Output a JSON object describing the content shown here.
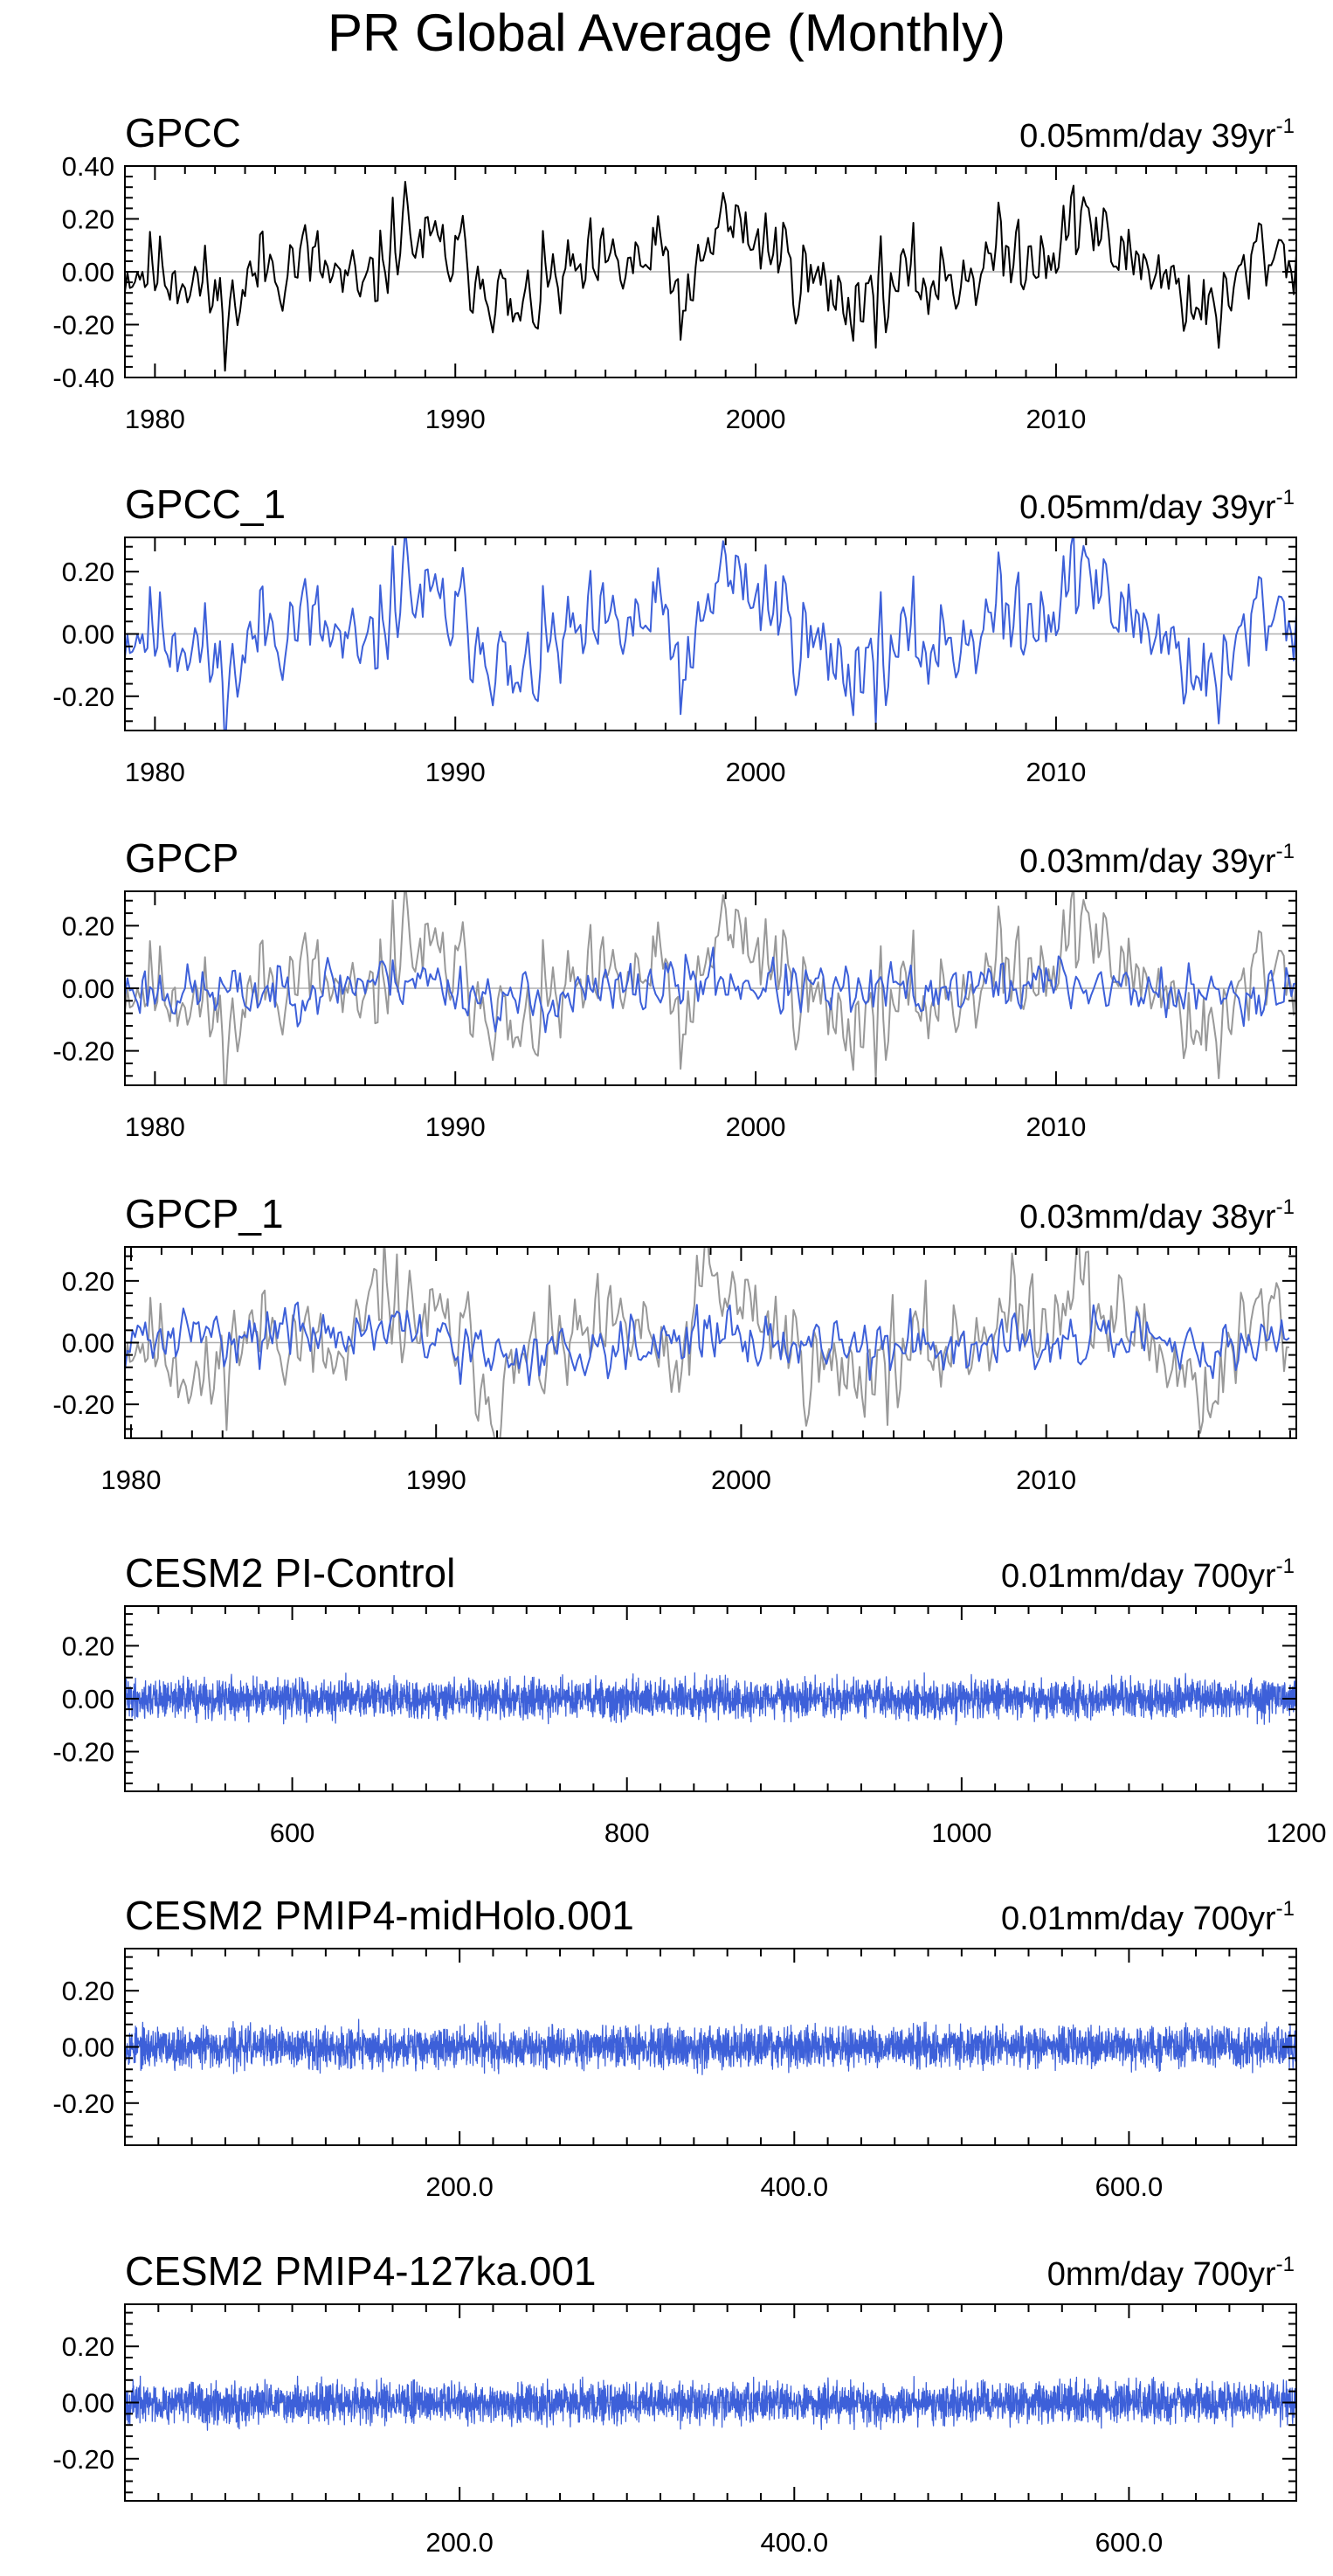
{
  "figure_title": "PR Global Average (Monthly)",
  "colors": {
    "obs": "#000000",
    "obs_faded": "#999999",
    "model": "#3d60d9",
    "axis": "#000000",
    "zero_line": "#b0b0b0"
  },
  "chart_data": [
    {
      "type": "line",
      "title": "GPCC",
      "trend_text": "0.05mm/day 39yr",
      "trend_exp": "-1",
      "xlim": [
        1979,
        2018
      ],
      "ylim": [
        -0.4,
        0.4
      ],
      "xticks": [
        1980,
        1990,
        2000,
        2010
      ],
      "xtick_labels": [
        "1980",
        "1990",
        "2000",
        "2010"
      ],
      "yticks": [
        -0.4,
        -0.2,
        0.0,
        0.2,
        0.4
      ],
      "ytick_labels": [
        "-0.40",
        "-0.20",
        "0.00",
        "0.20",
        "0.40"
      ],
      "series": [
        {
          "style": "obs",
          "sampling": "monthly",
          "seed": 11,
          "x": [
            1979.0,
            1981.0,
            1982.5,
            1983.5,
            1985.0,
            1987.0,
            1988.3,
            1988.8,
            1990.0,
            1991.0,
            1992.0,
            1993.0,
            1995.0,
            1997.0,
            1997.7,
            1998.8,
            1999.5,
            2000.5,
            2002.0,
            2003.0,
            2005.0,
            2006.5,
            2008.0,
            2009.5,
            2010.2,
            2011.0,
            2011.6,
            2013.0,
            2014.5,
            2015.5,
            2016.0,
            2017.0,
            2018.0
          ],
          "y": [
            0.02,
            0.0,
            -0.15,
            0.02,
            0.05,
            -0.1,
            0.2,
            0.1,
            0.05,
            0.0,
            -0.2,
            -0.05,
            0.0,
            0.05,
            -0.18,
            0.22,
            0.15,
            0.1,
            -0.05,
            -0.1,
            -0.05,
            -0.02,
            0.05,
            0.1,
            0.1,
            0.25,
            0.08,
            0.05,
            -0.1,
            -0.18,
            -0.05,
            0.1,
            0.05
          ],
          "noise": 0.075
        }
      ]
    },
    {
      "type": "line",
      "title": "GPCC_1",
      "trend_text": "0.05mm/day 39yr",
      "trend_exp": "-1",
      "xlim": [
        1979,
        2018
      ],
      "ylim": [
        -0.31,
        0.31
      ],
      "xticks": [
        1980,
        1990,
        2000,
        2010
      ],
      "xtick_labels": [
        "1980",
        "1990",
        "2000",
        "2010"
      ],
      "yticks": [
        -0.2,
        0.0,
        0.2
      ],
      "ytick_labels": [
        "-0.20",
        "0.00",
        "0.20"
      ],
      "series": [
        {
          "style": "model",
          "sampling": "monthly",
          "seed": 11,
          "x": [
            1979.0,
            1981.0,
            1982.5,
            1983.5,
            1985.0,
            1987.0,
            1988.3,
            1988.8,
            1990.0,
            1991.0,
            1992.0,
            1993.0,
            1995.0,
            1997.0,
            1997.7,
            1998.8,
            1999.5,
            2000.5,
            2002.0,
            2003.0,
            2005.0,
            2006.5,
            2008.0,
            2009.5,
            2010.2,
            2011.0,
            2011.6,
            2013.0,
            2014.5,
            2015.5,
            2016.0,
            2017.0,
            2018.0
          ],
          "y": [
            0.02,
            0.0,
            -0.15,
            0.02,
            0.05,
            -0.1,
            0.2,
            0.1,
            0.05,
            0.0,
            -0.2,
            -0.05,
            0.0,
            0.05,
            -0.18,
            0.22,
            0.15,
            0.1,
            -0.05,
            -0.1,
            -0.05,
            -0.02,
            0.05,
            0.1,
            0.1,
            0.25,
            0.08,
            0.05,
            -0.1,
            -0.18,
            -0.05,
            0.1,
            0.05
          ],
          "noise": 0.075
        }
      ]
    },
    {
      "type": "line",
      "title": "GPCP",
      "trend_text": "0.03mm/day 39yr",
      "trend_exp": "-1",
      "xlim": [
        1979,
        2018
      ],
      "ylim": [
        -0.31,
        0.31
      ],
      "xticks": [
        1980,
        1990,
        2000,
        2010
      ],
      "xtick_labels": [
        "1980",
        "1990",
        "2000",
        "2010"
      ],
      "yticks": [
        -0.2,
        0.0,
        0.2
      ],
      "ytick_labels": [
        "-0.20",
        "0.00",
        "0.20"
      ],
      "series": [
        {
          "style": "obs_faded",
          "sampling": "monthly",
          "seed": 11,
          "x": [
            1979.0,
            1981.0,
            1982.5,
            1983.5,
            1985.0,
            1987.0,
            1988.3,
            1988.8,
            1990.0,
            1991.0,
            1992.0,
            1993.0,
            1995.0,
            1997.0,
            1997.7,
            1998.8,
            1999.5,
            2000.5,
            2002.0,
            2003.0,
            2005.0,
            2006.5,
            2008.0,
            2009.5,
            2010.2,
            2011.0,
            2011.6,
            2013.0,
            2014.5,
            2015.5,
            2016.0,
            2017.0,
            2018.0
          ],
          "y": [
            0.02,
            0.0,
            -0.15,
            0.02,
            0.05,
            -0.1,
            0.2,
            0.1,
            0.05,
            0.0,
            -0.2,
            -0.05,
            0.0,
            0.05,
            -0.18,
            0.22,
            0.15,
            0.1,
            -0.05,
            -0.1,
            -0.05,
            -0.02,
            0.05,
            0.1,
            0.1,
            0.25,
            0.08,
            0.05,
            -0.1,
            -0.18,
            -0.05,
            0.1,
            0.05
          ],
          "noise": 0.075
        },
        {
          "style": "model",
          "sampling": "monthly",
          "seed": 23,
          "x": [
            1979.0,
            1983.0,
            1988.5,
            1992.0,
            1998.5,
            2003.0,
            2010.0,
            2015.5,
            2018.0
          ],
          "y": [
            0.0,
            -0.02,
            0.04,
            -0.05,
            0.03,
            -0.02,
            0.02,
            -0.03,
            0.02
          ],
          "noise": 0.04
        }
      ]
    },
    {
      "type": "line",
      "title": "GPCP_1",
      "trend_text": "0.03mm/day 38yr",
      "trend_exp": "-1",
      "xlim": [
        1979.8,
        2018.2
      ],
      "ylim": [
        -0.31,
        0.31
      ],
      "xticks": [
        1980,
        1990,
        2000,
        2010
      ],
      "xtick_labels": [
        "1980",
        "1990",
        "2000",
        "2010"
      ],
      "yticks": [
        -0.2,
        0.0,
        0.2
      ],
      "ytick_labels": [
        "-0.20",
        "0.00",
        "0.20"
      ],
      "series": [
        {
          "style": "obs_faded",
          "sampling": "monthly",
          "seed": 11,
          "x": [
            1979.8,
            1981.0,
            1982.5,
            1983.5,
            1985.0,
            1987.0,
            1988.3,
            1988.8,
            1990.0,
            1991.0,
            1992.0,
            1993.0,
            1995.0,
            1997.0,
            1997.7,
            1998.8,
            1999.5,
            2000.5,
            2002.0,
            2003.0,
            2005.0,
            2006.5,
            2008.0,
            2009.5,
            2010.2,
            2011.0,
            2011.6,
            2013.0,
            2014.5,
            2015.5,
            2016.0,
            2017.0,
            2018.0
          ],
          "y": [
            0.02,
            0.0,
            -0.15,
            0.02,
            0.05,
            -0.1,
            0.2,
            0.1,
            0.05,
            0.0,
            -0.2,
            -0.05,
            0.0,
            0.05,
            -0.18,
            0.22,
            0.15,
            0.1,
            -0.05,
            -0.1,
            -0.05,
            -0.02,
            0.05,
            0.1,
            0.1,
            0.25,
            0.08,
            0.05,
            -0.1,
            -0.18,
            -0.05,
            0.1,
            0.05
          ],
          "noise": 0.075
        },
        {
          "style": "model",
          "sampling": "monthly",
          "seed": 31,
          "x": [
            1979.8,
            1983.0,
            1988.5,
            1992.0,
            1998.5,
            2003.0,
            2010.0,
            2015.5,
            2018.0
          ],
          "y": [
            0.0,
            0.03,
            0.04,
            -0.05,
            0.03,
            -0.02,
            0.02,
            -0.03,
            0.02
          ],
          "noise": 0.04
        }
      ]
    },
    {
      "type": "line",
      "title": "CESM2 PI-Control",
      "trend_text": "0.01mm/day 700yr",
      "trend_exp": "-1",
      "xlim": [
        500,
        1200
      ],
      "ylim": [
        -0.35,
        0.35
      ],
      "xticks": [
        600,
        800,
        1000,
        1200
      ],
      "xtick_labels": [
        "600",
        "800",
        "1000",
        "1200"
      ],
      "yticks": [
        -0.2,
        0.0,
        0.2
      ],
      "ytick_labels": [
        "-0.20",
        "0.00",
        "0.20"
      ],
      "series": [
        {
          "style": "model",
          "sampling": "dense",
          "seed": 41,
          "x": [
            500,
            1200
          ],
          "y": [
            0.0,
            0.0
          ],
          "noise": 0.035
        }
      ]
    },
    {
      "type": "line",
      "title": "CESM2 PMIP4-midHolo.001",
      "trend_text": "0.01mm/day 700yr",
      "trend_exp": "-1",
      "xlim": [
        0,
        700
      ],
      "ylim": [
        -0.35,
        0.35
      ],
      "xticks": [
        200,
        400,
        600
      ],
      "xtick_labels": [
        "200.0",
        "400.0",
        "600.0"
      ],
      "yticks": [
        -0.2,
        0.0,
        0.2
      ],
      "ytick_labels": [
        "-0.20",
        "0.00",
        "0.20"
      ],
      "series": [
        {
          "style": "model",
          "sampling": "dense",
          "seed": 53,
          "x": [
            0,
            700
          ],
          "y": [
            0.0,
            0.0
          ],
          "noise": 0.035
        }
      ]
    },
    {
      "type": "line",
      "title": "CESM2 PMIP4-127ka.001",
      "trend_text": "0mm/day 700yr",
      "trend_exp": "-1",
      "xlim": [
        0,
        700
      ],
      "ylim": [
        -0.35,
        0.35
      ],
      "xticks": [
        200,
        400,
        600
      ],
      "xtick_labels": [
        "200.0",
        "400.0",
        "600.0"
      ],
      "yticks": [
        -0.2,
        0.0,
        0.2
      ],
      "ytick_labels": [
        "-0.20",
        "0.00",
        "0.20"
      ],
      "series": [
        {
          "style": "model",
          "sampling": "dense",
          "seed": 67,
          "x": [
            0,
            700
          ],
          "y": [
            0.0,
            0.0
          ],
          "noise": 0.035
        }
      ]
    }
  ]
}
